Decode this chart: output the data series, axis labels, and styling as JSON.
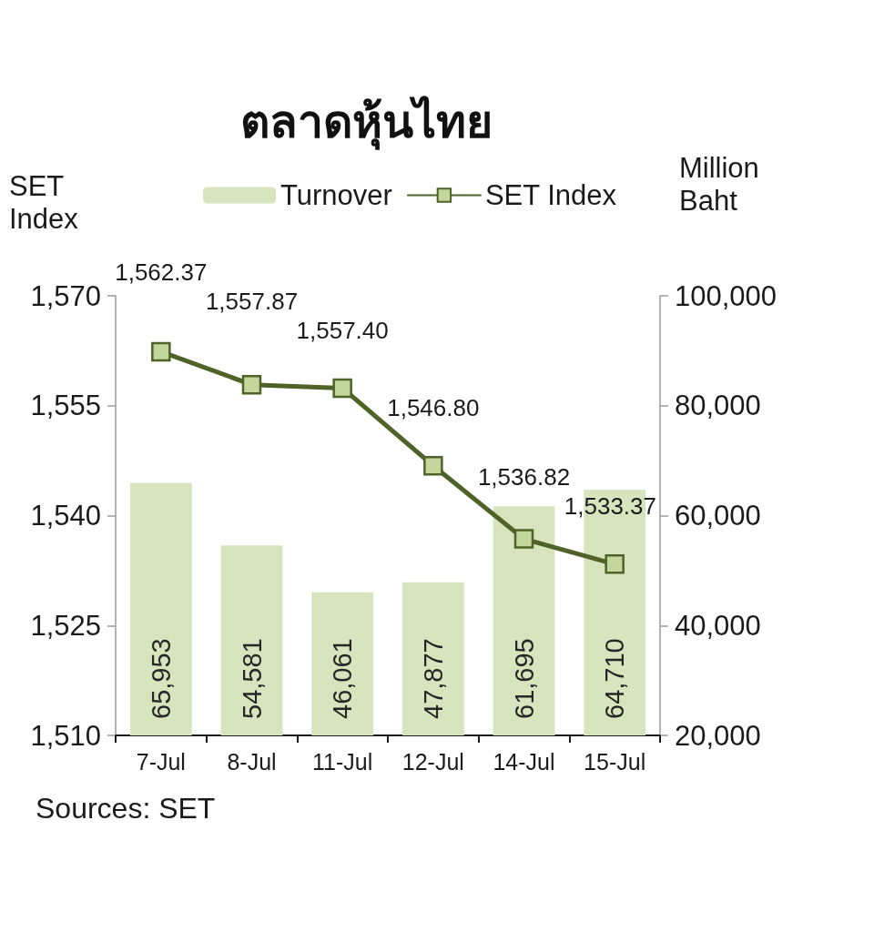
{
  "chart_data": {
    "type": "bar",
    "title": "ตลาดหุ้นไทย",
    "ylabel": "SET Index",
    "y2label": "Million Baht",
    "annotations": [
      "Sources: SET"
    ],
    "categories": [
      "7-Jul",
      "8-Jul",
      "11-Jul",
      "12-Jul",
      "14-Jul",
      "15-Jul"
    ],
    "series": [
      {
        "name": "Turnover",
        "axis": "y2",
        "color": "#d7e4bd",
        "values": [
          65953,
          54581,
          46061,
          47877,
          61695,
          64710
        ],
        "value_labels": [
          "65,953",
          "54,581",
          "46,061",
          "47,877",
          "61,695",
          "64,710"
        ]
      },
      {
        "name": "SET Index",
        "type": "line",
        "color": "#4f6228",
        "values": [
          1562.37,
          1557.87,
          1557.4,
          1546.8,
          1536.82,
          1533.37
        ],
        "value_labels": [
          "1,562.37",
          "1,557.87",
          "1,557.40",
          "1,546.80",
          "1,536.82",
          "1,533.37"
        ]
      }
    ],
    "ylim": [
      1510,
      1570
    ],
    "yticks": [
      {
        "value": 1510,
        "label": "1,510"
      },
      {
        "value": 1525,
        "label": "1,525"
      },
      {
        "value": 1540,
        "label": "1,540"
      },
      {
        "value": 1555,
        "label": "1,555"
      },
      {
        "value": 1570,
        "label": "1,570"
      }
    ],
    "y2lim": [
      20000,
      100000
    ],
    "y2ticks": [
      {
        "value": 20000,
        "label": "20,000"
      },
      {
        "value": 40000,
        "label": "40,000"
      },
      {
        "value": 60000,
        "label": "60,000"
      },
      {
        "value": 80000,
        "label": "80,000"
      },
      {
        "value": 100000,
        "label": "100,000"
      }
    ],
    "legend": "top",
    "marker": "square",
    "grid": false
  }
}
